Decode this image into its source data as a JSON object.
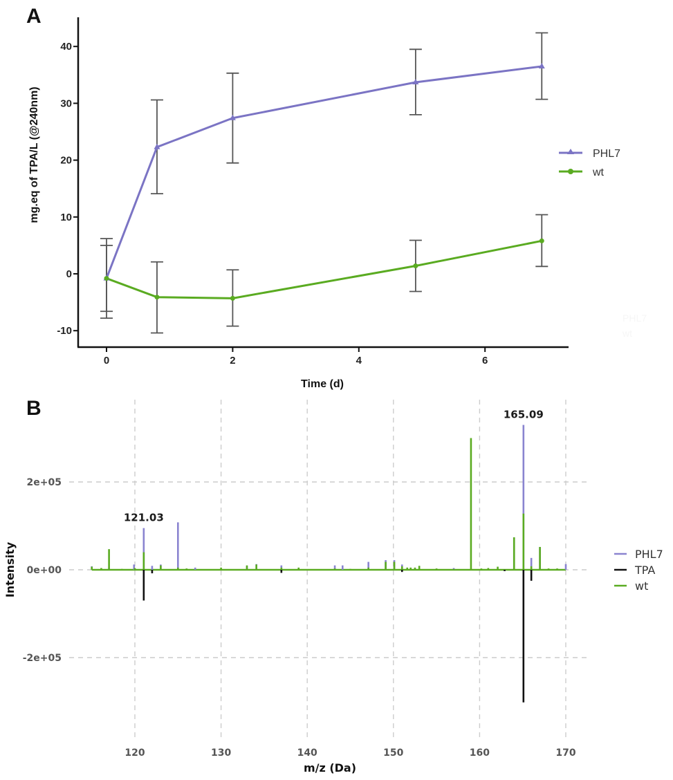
{
  "chart_data": [
    {
      "panel": "A",
      "type": "line",
      "title": "",
      "xlabel": "Time (d)",
      "ylabel": "mg.eq of TPA/L (@240nm)",
      "xlim": [
        -0.45,
        7.3
      ],
      "ylim": [
        -12.9,
        46.5
      ],
      "xticks": [
        0,
        2,
        4,
        6
      ],
      "yticks": [
        -10,
        0,
        10,
        20,
        30,
        40
      ],
      "xtick_labels": [
        "0",
        "2",
        "4",
        "6"
      ],
      "ytick_labels": [
        "-10",
        "0",
        "10",
        "20",
        "30",
        "40"
      ],
      "grid": false,
      "legend_position": "right",
      "error_bar_color": "#555555",
      "series": [
        {
          "name": "PHL7",
          "color": "#7b74c4",
          "marker": "triangle",
          "x": [
            0,
            0.8,
            2,
            4.9,
            6.9
          ],
          "y": [
            -0.8,
            22.3,
            27.4,
            33.7,
            36.5
          ],
          "err_upper": [
            5.0,
            30.6,
            35.3,
            39.5,
            42.4
          ],
          "err_lower": [
            -6.6,
            14.1,
            19.5,
            28.0,
            30.7
          ]
        },
        {
          "name": "wt",
          "color": "#5aab21",
          "marker": "circle",
          "x": [
            0,
            0.8,
            2,
            4.9,
            6.9
          ],
          "y": [
            -0.8,
            -4.1,
            -4.3,
            1.4,
            5.8
          ],
          "err_upper": [
            6.2,
            2.1,
            0.7,
            5.9,
            10.4
          ],
          "err_lower": [
            -7.8,
            -10.4,
            -9.2,
            -3.1,
            1.3
          ]
        }
      ],
      "ghost_legend": [
        "PHL7",
        "wt"
      ]
    },
    {
      "panel": "B",
      "type": "bar",
      "subtype": "mirror mass spectrum (stick plot)",
      "title": "",
      "xlabel": "m/z (Da)",
      "ylabel": "Intensity",
      "xlim": [
        115,
        170
      ],
      "ylim": [
        -330000,
        360000
      ],
      "xticks": [
        120,
        130,
        140,
        150,
        160,
        170
      ],
      "xtick_labels": [
        "120",
        "130",
        "140",
        "150",
        "160",
        "170"
      ],
      "yticks": [
        -200000,
        0,
        200000
      ],
      "ytick_labels": [
        "-2e+05",
        "0e+00",
        "2e+05"
      ],
      "grid": true,
      "grid_style": "dashed",
      "legend_position": "right",
      "annotations": [
        {
          "text": "121.03",
          "x": 121.03
        },
        {
          "text": "165.09",
          "x": 165.09
        }
      ],
      "series": [
        {
          "name": "PHL7",
          "color": "#8a84d0",
          "peaks": [
            [
              115.0,
              8000
            ],
            [
              117.0,
              5000
            ],
            [
              119.9,
              12000
            ],
            [
              121.03,
              95000
            ],
            [
              122.0,
              9000
            ],
            [
              123.0,
              12000
            ],
            [
              125.0,
              108000
            ],
            [
              127.0,
              5000
            ],
            [
              133.0,
              8000
            ],
            [
              134.1,
              13000
            ],
            [
              137.0,
              10000
            ],
            [
              143.2,
              10000
            ],
            [
              144.1,
              10000
            ],
            [
              147.1,
              18000
            ],
            [
              149.1,
              22000
            ],
            [
              150.1,
              22000
            ],
            [
              151.0,
              12000
            ],
            [
              157.0,
              4000
            ],
            [
              164.0,
              74000
            ],
            [
              165.09,
              330000
            ],
            [
              166.0,
              27000
            ],
            [
              167.0,
              52000
            ],
            [
              170.0,
              13000
            ]
          ]
        },
        {
          "name": "TPA",
          "color": "#111111",
          "peaks": [
            [
              121.03,
              -70000
            ],
            [
              122.0,
              -8000
            ],
            [
              137.0,
              -7000
            ],
            [
              151.0,
              -5000
            ],
            [
              162.9,
              -3000
            ],
            [
              165.09,
              -302000
            ],
            [
              166.0,
              -25000
            ]
          ]
        },
        {
          "name": "wt",
          "color": "#5aab21",
          "peaks": [
            [
              115.0,
              7000
            ],
            [
              116.1,
              4000
            ],
            [
              117.0,
              47000
            ],
            [
              118.5,
              2000
            ],
            [
              120.0,
              4000
            ],
            [
              121.03,
              40000
            ],
            [
              123.0,
              10000
            ],
            [
              125.0,
              5000
            ],
            [
              126.0,
              3000
            ],
            [
              130.0,
              5000
            ],
            [
              133.0,
              10000
            ],
            [
              134.1,
              12000
            ],
            [
              137.0,
              5000
            ],
            [
              139.0,
              5000
            ],
            [
              143.2,
              3000
            ],
            [
              145.0,
              2000
            ],
            [
              147.1,
              5000
            ],
            [
              149.1,
              18000
            ],
            [
              150.1,
              18000
            ],
            [
              151.0,
              8000
            ],
            [
              151.6,
              5000
            ],
            [
              152.0,
              5000
            ],
            [
              152.5,
              5000
            ],
            [
              153.0,
              9000
            ],
            [
              155.0,
              3000
            ],
            [
              157.0,
              2000
            ],
            [
              159.0,
              300000
            ],
            [
              160.2,
              3000
            ],
            [
              161.0,
              4000
            ],
            [
              162.1,
              7000
            ],
            [
              164.0,
              74000
            ],
            [
              165.09,
              128000
            ],
            [
              166.0,
              8000
            ],
            [
              167.0,
              52000
            ],
            [
              168.0,
              3000
            ],
            [
              169.0,
              3000
            ]
          ]
        }
      ]
    }
  ],
  "panels": {
    "a": {
      "label": "A"
    },
    "b": {
      "label": "B"
    }
  }
}
